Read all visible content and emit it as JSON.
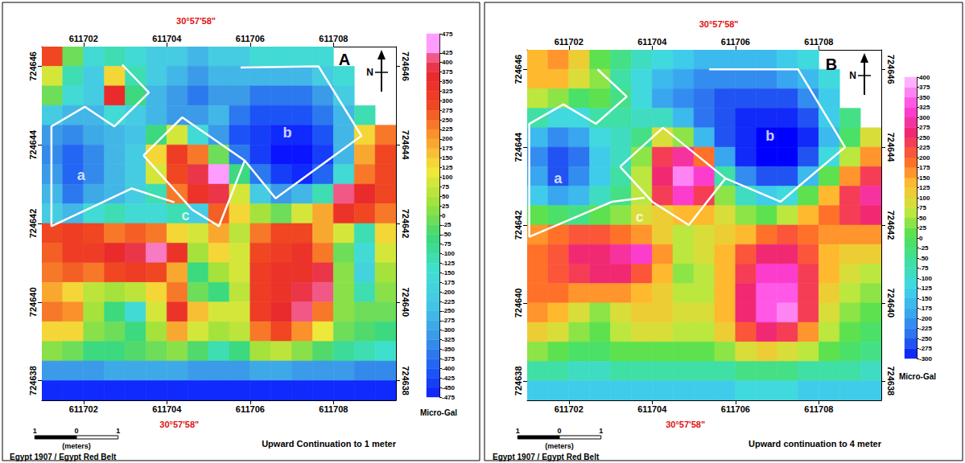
{
  "chart_data": [
    {
      "type": "heatmap",
      "panel": "A",
      "title": "Upward Continuation to 1 meter",
      "datum": "Egypt 1907 / Egypt Red Belt",
      "north": "N",
      "z_label": "Micro-Gal",
      "xlim": [
        611701,
        611709.5
      ],
      "ylim": [
        724637.5,
        724646.5
      ],
      "xticks": [
        611702,
        611704,
        611706,
        611708
      ],
      "yticks": [
        724638,
        724640,
        724642,
        724644,
        724646
      ],
      "zlim": [
        -475,
        475
      ],
      "zticks": [
        -475,
        -450,
        -425,
        -400,
        -375,
        -350,
        -325,
        -300,
        -275,
        -250,
        -225,
        -200,
        -175,
        -150,
        -125,
        -100,
        -75,
        -50,
        -25,
        0,
        25,
        50,
        75,
        100,
        125,
        150,
        175,
        200,
        225,
        250,
        275,
        300,
        325,
        350,
        375,
        400,
        425,
        475
      ],
      "x": [
        611701.25,
        611701.75,
        611702.25,
        611702.75,
        611703.25,
        611703.75,
        611704.25,
        611704.75,
        611705.25,
        611705.75,
        611706.25,
        611706.75,
        611707.25,
        611707.75,
        611708.25,
        611708.75,
        611709.25
      ],
      "y": [
        724646.25,
        724645.75,
        724645.25,
        724644.75,
        724644.25,
        724643.75,
        724643.25,
        724642.75,
        724642.25,
        724641.75,
        724641.25,
        724640.75,
        724640.25,
        724639.75,
        724639.25,
        724638.75,
        724638.25,
        724637.75
      ],
      "z": [
        [
          300,
          0,
          -150,
          -100,
          -150,
          -200,
          -200,
          -250,
          -200,
          -200,
          -150,
          -150,
          -150,
          -150,
          null,
          null,
          null
        ],
        [
          100,
          -100,
          -200,
          150,
          -100,
          -200,
          -250,
          -300,
          -250,
          -250,
          -250,
          -250,
          -250,
          -200,
          -150,
          null,
          null
        ],
        [
          0,
          -150,
          -200,
          375,
          -50,
          -250,
          -300,
          -350,
          -300,
          -300,
          -350,
          -350,
          -350,
          -300,
          -200,
          null,
          null
        ],
        [
          -200,
          -250,
          -250,
          -150,
          -200,
          -250,
          -300,
          -300,
          -250,
          -350,
          -400,
          -400,
          -400,
          -350,
          -250,
          -100,
          null
        ],
        [
          -300,
          -325,
          -275,
          -250,
          -225,
          -50,
          100,
          -150,
          -300,
          -400,
          -425,
          -450,
          -450,
          -400,
          -250,
          150,
          250
        ],
        [
          -325,
          -375,
          -325,
          -250,
          -200,
          150,
          325,
          250,
          0,
          -350,
          -425,
          -475,
          -475,
          -425,
          -250,
          200,
          300
        ],
        [
          -300,
          -375,
          -325,
          -250,
          -200,
          100,
          300,
          400,
          475,
          -50,
          -350,
          -425,
          -450,
          -375,
          -150,
          250,
          300
        ],
        [
          -250,
          -350,
          -275,
          -250,
          -200,
          -100,
          250,
          350,
          400,
          100,
          -200,
          -300,
          -250,
          -100,
          425,
          375,
          300
        ],
        [
          -200,
          -250,
          -150,
          -100,
          -150,
          -150,
          -100,
          -200,
          275,
          150,
          50,
          0,
          100,
          200,
          350,
          300,
          250
        ],
        [
          300,
          325,
          300,
          250,
          275,
          250,
          150,
          100,
          200,
          75,
          250,
          300,
          300,
          200,
          100,
          -100,
          150
        ],
        [
          275,
          325,
          325,
          375,
          400,
          450,
          350,
          50,
          150,
          100,
          300,
          325,
          350,
          250,
          0,
          -150,
          100
        ],
        [
          250,
          275,
          250,
          300,
          325,
          300,
          200,
          -50,
          50,
          100,
          325,
          350,
          350,
          400,
          25,
          -175,
          50
        ],
        [
          200,
          150,
          75,
          50,
          75,
          150,
          250,
          0,
          -50,
          75,
          325,
          350,
          400,
          425,
          25,
          -100,
          25
        ],
        [
          250,
          225,
          50,
          -50,
          -150,
          100,
          350,
          175,
          100,
          100,
          325,
          375,
          425,
          250,
          25,
          0,
          0
        ],
        [
          150,
          150,
          25,
          0,
          -50,
          50,
          200,
          100,
          50,
          75,
          250,
          300,
          225,
          125,
          0,
          -25,
          -50
        ],
        [
          25,
          0,
          -50,
          -50,
          -25,
          0,
          25,
          -25,
          -100,
          -50,
          50,
          75,
          25,
          -25,
          -75,
          -100,
          -125
        ],
        [
          -300,
          -300,
          -300,
          -275,
          -275,
          -275,
          -275,
          -300,
          -300,
          -300,
          -275,
          -275,
          -300,
          -300,
          -300,
          -325,
          -325
        ],
        [
          -450,
          -450,
          -450,
          -450,
          -450,
          -450,
          -450,
          -450,
          -450,
          -450,
          -450,
          -450,
          -450,
          -450,
          -450,
          -450,
          -450
        ]
      ],
      "zones": [
        {
          "label": "a",
          "label_at": [
            611701.94,
            724643.22
          ],
          "points": [
            [
              611702.93,
              724646.04
            ],
            [
              611703.57,
              724645.33
            ],
            [
              611702.74,
              724644.47
            ],
            [
              611702.03,
              724644.97
            ],
            [
              611701.23,
              724644.47
            ],
            [
              611701.23,
              724641.93
            ],
            [
              611703.16,
              724642.89
            ],
            [
              611704.18,
              724642.54
            ]
          ]
        },
        {
          "label": "c",
          "label_at": [
            611704.45,
            724642.2
          ],
          "points": [
            [
              611703.44,
              724643.73
            ],
            [
              611704.37,
              724644.7
            ],
            [
              611705.87,
              724643.6
            ],
            [
              611705.25,
              724641.93
            ],
            [
              611704.61,
              724642.35
            ],
            [
              611703.44,
              724643.73
            ]
          ]
        },
        {
          "label": "b",
          "label_at": [
            611706.89,
            724644.31
          ],
          "points": [
            [
              611705.77,
              724645.97
            ],
            [
              611707.64,
              724646.0
            ],
            [
              611708.67,
              724644.23
            ],
            [
              611706.61,
              724642.64
            ],
            [
              611705.87,
              724643.6
            ]
          ]
        }
      ],
      "annotations": [
        {
          "text": "30°57'58\"",
          "x": 611704.7,
          "side": "top"
        },
        {
          "text": "30°57'58\"",
          "x": 611704.3,
          "side": "bottom"
        }
      ],
      "scale": {
        "ticks": [
          {
            "value": -1,
            "label": "1"
          },
          0,
          1
        ],
        "label": "(meters)"
      }
    },
    {
      "type": "heatmap",
      "panel": "B",
      "title": "Upward continuation to 4 meter",
      "datum": "Egypt 1907 / Egypt Red Belt",
      "north": "N",
      "z_label": "Micro-Gal",
      "xlim": [
        611701,
        611709.5
      ],
      "ylim": [
        724637.5,
        724646.5
      ],
      "xticks": [
        611702,
        611704,
        611706,
        611708
      ],
      "yticks": [
        724638,
        724640,
        724642,
        724644,
        724646
      ],
      "zlim": [
        -300,
        400
      ],
      "zticks": [
        -300,
        -275,
        -250,
        -225,
        -200,
        -175,
        -150,
        -125,
        -100,
        -75,
        -50,
        -25,
        0,
        25,
        50,
        75,
        100,
        125,
        150,
        175,
        200,
        225,
        250,
        275,
        300,
        325,
        350,
        375,
        400
      ],
      "x": [
        611701.25,
        611701.75,
        611702.25,
        611702.75,
        611703.25,
        611703.75,
        611704.25,
        611704.75,
        611705.25,
        611705.75,
        611706.25,
        611706.75,
        611707.25,
        611707.75,
        611708.25,
        611708.75,
        611709.25
      ],
      "y": [
        724646.25,
        724645.75,
        724645.25,
        724644.75,
        724644.25,
        724643.75,
        724643.25,
        724642.75,
        724642.25,
        724641.75,
        724641.25,
        724640.75,
        724640.25,
        724639.75,
        724639.25,
        724638.75,
        724638.25,
        724637.75
      ],
      "z": [
        [
          150,
          175,
          125,
          25,
          -25,
          -75,
          -100,
          -125,
          -150,
          -150,
          -150,
          -150,
          -125,
          -100,
          null,
          null,
          null
        ],
        [
          150,
          150,
          100,
          50,
          -50,
          -100,
          -150,
          -175,
          -200,
          -200,
          -200,
          -200,
          -175,
          -150,
          -100,
          null,
          null
        ],
        [
          75,
          50,
          0,
          25,
          -25,
          -100,
          -175,
          -200,
          -225,
          -250,
          -250,
          -250,
          -250,
          -200,
          -125,
          null,
          null
        ],
        [
          -50,
          -100,
          -100,
          -50,
          -50,
          -75,
          -75,
          -150,
          -225,
          -250,
          -275,
          -275,
          -275,
          -250,
          -125,
          -25,
          null
        ],
        [
          -150,
          -200,
          -175,
          -100,
          -75,
          -25,
          100,
          50,
          -150,
          -250,
          -275,
          -300,
          -300,
          -275,
          -150,
          0,
          100
        ],
        [
          -200,
          -250,
          -225,
          -125,
          -75,
          50,
          250,
          300,
          200,
          -175,
          -275,
          -300,
          -300,
          -250,
          -100,
          75,
          175
        ],
        [
          -175,
          -250,
          -200,
          -125,
          -50,
          75,
          275,
          375,
          325,
          -50,
          -200,
          -250,
          -250,
          -150,
          25,
          175,
          250
        ],
        [
          -125,
          -175,
          -150,
          -75,
          -25,
          75,
          250,
          325,
          250,
          50,
          -75,
          -125,
          -100,
          25,
          150,
          250,
          300
        ],
        [
          25,
          0,
          -25,
          25,
          50,
          100,
          125,
          150,
          150,
          100,
          50,
          25,
          75,
          150,
          200,
          250,
          275
        ],
        [
          175,
          200,
          225,
          225,
          200,
          175,
          125,
          75,
          100,
          125,
          150,
          200,
          225,
          200,
          175,
          175,
          175
        ],
        [
          200,
          225,
          275,
          275,
          300,
          325,
          175,
          75,
          100,
          150,
          225,
          275,
          275,
          225,
          150,
          125,
          125
        ],
        [
          200,
          225,
          250,
          275,
          275,
          225,
          150,
          50,
          75,
          150,
          250,
          325,
          325,
          250,
          150,
          100,
          75
        ],
        [
          200,
          200,
          175,
          175,
          175,
          150,
          125,
          75,
          75,
          150,
          275,
          350,
          350,
          250,
          125,
          75,
          50
        ],
        [
          175,
          150,
          100,
          50,
          100,
          125,
          125,
          100,
          100,
          150,
          275,
          350,
          375,
          250,
          100,
          50,
          25
        ],
        [
          125,
          100,
          50,
          25,
          75,
          100,
          100,
          75,
          75,
          125,
          225,
          275,
          250,
          175,
          75,
          25,
          0
        ],
        [
          50,
          25,
          0,
          0,
          25,
          25,
          25,
          25,
          25,
          50,
          100,
          125,
          100,
          75,
          25,
          0,
          -25
        ],
        [
          -50,
          -50,
          -75,
          -75,
          -50,
          -50,
          -50,
          -50,
          -50,
          -50,
          -25,
          -25,
          -25,
          -50,
          -50,
          -50,
          -75
        ],
        [
          -125,
          -125,
          -125,
          -125,
          -125,
          -125,
          -125,
          -125,
          -125,
          -125,
          -100,
          -100,
          -100,
          -125,
          -125,
          -125,
          -125
        ]
      ],
      "zones": [
        {
          "label": "a",
          "label_at": [
            611701.74,
            724643.2
          ],
          "points": [
            [
              611702.69,
              724646.0
            ],
            [
              611703.39,
              724645.3
            ],
            [
              611702.65,
              724644.6
            ],
            [
              611701.87,
              724645.1
            ],
            [
              611701.05,
              724644.6
            ],
            [
              611701.05,
              724641.7
            ],
            [
              611703.04,
              724642.6
            ],
            [
              611703.82,
              724642.7
            ]
          ]
        },
        {
          "label": "c",
          "label_at": [
            611703.7,
            724642.2
          ],
          "points": [
            [
              611703.23,
              724643.5
            ],
            [
              611704.26,
              724644.5
            ],
            [
              611705.76,
              724643.2
            ],
            [
              611704.88,
              724642.0
            ],
            [
              611704.0,
              724642.6
            ],
            [
              611703.23,
              724643.5
            ]
          ]
        },
        {
          "label": "b",
          "label_at": [
            611706.83,
            724644.3
          ],
          "points": [
            [
              611705.37,
              724646.0
            ],
            [
              611707.5,
              724646.0
            ],
            [
              611708.63,
              724644.0
            ],
            [
              611707.08,
              724642.6
            ],
            [
              611705.76,
              724643.2
            ]
          ]
        }
      ],
      "annotations": [
        {
          "text": "30°57'58\"",
          "x": 611705.6,
          "side": "top"
        },
        {
          "text": "30°57'58\"",
          "x": 611704.8,
          "side": "bottom"
        }
      ],
      "scale": {
        "ticks": [
          {
            "value": -1,
            "label": "1"
          },
          0,
          1
        ],
        "label": "(meters)"
      }
    }
  ]
}
